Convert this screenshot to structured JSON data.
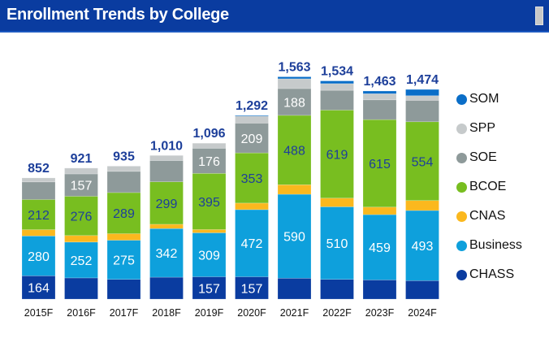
{
  "header": {
    "title": "Enrollment Trends by College"
  },
  "chart_data": {
    "type": "bar",
    "stacked": true,
    "title": "Enrollment Trends by College",
    "categories": [
      "2015F",
      "2016F",
      "2017F",
      "2018F",
      "2019F",
      "2020F",
      "2021F",
      "2022F",
      "2023F",
      "2024F"
    ],
    "totals": [
      "852",
      "921",
      "935",
      "1,010",
      "1,096",
      "1,292",
      "1,563",
      "1,534",
      "1,463",
      "1,474"
    ],
    "series": [
      {
        "name": "CHASS",
        "color": "#0a3ca0",
        "label_color": "#ffffff",
        "values": [
          164,
          149,
          139,
          154,
          157,
          157,
          147,
          139,
          135,
          130
        ],
        "labels": [
          "164",
          null,
          null,
          null,
          "157",
          "157",
          null,
          null,
          null,
          null
        ]
      },
      {
        "name": "Business",
        "color": "#0ea0dc",
        "label_color": "#ffffff",
        "values": [
          280,
          252,
          275,
          342,
          309,
          472,
          590,
          510,
          459,
          493
        ],
        "labels": [
          "280",
          "252",
          "275",
          "342",
          "309",
          "472",
          "590",
          "510",
          "459",
          "493"
        ]
      },
      {
        "name": "CNAS",
        "color": "#fbb81e",
        "label_color": "#ffffff",
        "values": [
          44,
          46,
          46,
          30,
          23,
          46,
          67,
          61,
          53,
          70
        ],
        "labels": [
          null,
          null,
          null,
          null,
          null,
          null,
          null,
          null,
          null,
          null
        ]
      },
      {
        "name": "BCOE",
        "color": "#78be20",
        "label_color": "#1d3f9a",
        "values": [
          212,
          276,
          289,
          299,
          395,
          353,
          488,
          619,
          615,
          554
        ],
        "labels": [
          "212",
          "276",
          "289",
          "299",
          "395",
          "353",
          "488",
          "619",
          "615",
          "554"
        ]
      },
      {
        "name": "SOE",
        "color": "#8e9a9a",
        "label_color": "#ffffff",
        "values": [
          124,
          157,
          149,
          149,
          176,
          209,
          188,
          139,
          139,
          150
        ],
        "labels": [
          null,
          "157",
          null,
          null,
          "176",
          "209",
          "188",
          null,
          null,
          null
        ]
      },
      {
        "name": "SPP",
        "color": "#c6cacb",
        "label_color": "#ffffff",
        "values": [
          28,
          41,
          37,
          36,
          36,
          50,
          69,
          47,
          43,
          33
        ],
        "labels": [
          null,
          null,
          null,
          null,
          null,
          null,
          null,
          null,
          null,
          null
        ]
      },
      {
        "name": "SOM",
        "color": "#0a6ec8",
        "label_color": "#ffffff",
        "values": [
          0,
          0,
          0,
          0,
          0,
          5,
          14,
          19,
          19,
          44
        ],
        "labels": [
          null,
          null,
          null,
          null,
          null,
          null,
          null,
          null,
          null,
          null
        ]
      }
    ],
    "legend": {
      "position": "right",
      "order": [
        "SOM",
        "SPP",
        "SOE",
        "BCOE",
        "CNAS",
        "Business",
        "CHASS"
      ]
    },
    "grid": false
  }
}
